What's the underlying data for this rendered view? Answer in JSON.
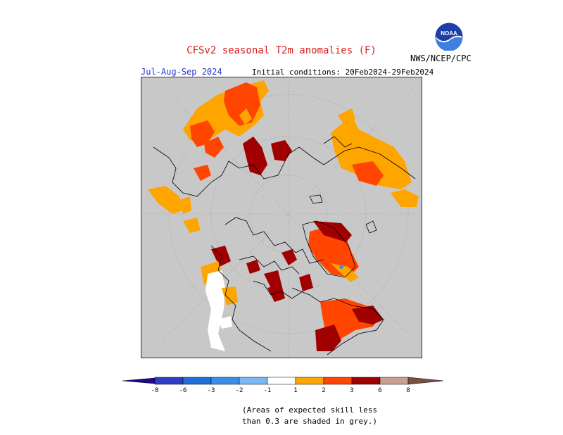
{
  "header": {
    "title": "CFSv2 seasonal T2m anomalies (F)",
    "period": "Jul-Aug-Sep 2024",
    "initial_conditions": "Initial conditions: 20Feb2024-29Feb2024",
    "agency": "NWS/NCEP/CPC",
    "logo_text": "NOAA"
  },
  "colors": {
    "background": "#c8c8c8",
    "warm_1": "#ffa500",
    "warm_2": "#ff4500",
    "warm_3": "#a00000",
    "cool_note": "white land = near-normal",
    "grid": "#9a9a9a"
  },
  "legend": {
    "tick_labels": [
      "-8",
      "-6",
      "-3",
      "-2",
      "-1",
      "1",
      "2",
      "3",
      "6",
      "8"
    ],
    "colors": [
      "#1a0a8c",
      "#2d3fc9",
      "#1f6fd6",
      "#3b8ee8",
      "#7bb7f2",
      "#ffffff",
      "#ffa500",
      "#ff4500",
      "#a00000",
      "#c8a090",
      "#7a5040"
    ]
  },
  "footer": {
    "skill_note_line1": "(Areas of expected skill less",
    "skill_note_line2": "than 0.3 are shaded in grey.)"
  }
}
